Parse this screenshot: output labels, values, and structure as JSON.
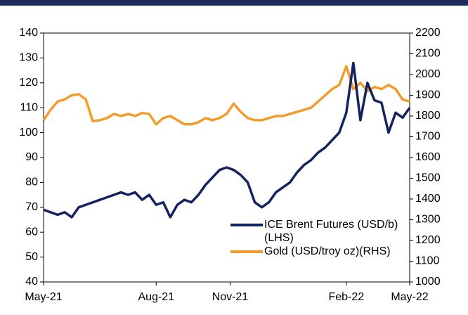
{
  "chart_data": {
    "type": "line",
    "xlim": [
      0,
      52
    ],
    "xticks": [
      {
        "value": 0,
        "label": "May-21"
      },
      {
        "value": 16,
        "label": "Aug-21"
      },
      {
        "value": 26.5,
        "label": "Nov-21"
      },
      {
        "value": 43,
        "label": "Feb-22"
      },
      {
        "value": 52,
        "label": "May-22"
      }
    ],
    "ylim": [
      40,
      140
    ],
    "yticks": [
      40,
      50,
      60,
      70,
      80,
      90,
      100,
      110,
      120,
      130,
      140
    ],
    "y2lim": [
      1000,
      2200
    ],
    "y2ticks": [
      1000,
      1100,
      1200,
      1300,
      1400,
      1500,
      1600,
      1700,
      1800,
      1900,
      2000,
      2100,
      2200
    ],
    "legend": "lower right",
    "series": [
      {
        "name": "ICE Brent Futures (USD/b)(LHS)",
        "color": "#13235f",
        "axis": "y",
        "values": [
          69,
          68,
          67,
          68,
          66,
          70,
          71,
          72,
          73,
          74,
          75,
          76,
          75,
          76,
          73,
          75,
          71,
          72,
          66,
          71,
          73,
          72,
          75,
          79,
          82,
          85,
          86,
          85,
          83,
          80,
          72,
          70,
          72,
          76,
          78,
          80,
          84,
          87,
          89,
          92,
          94,
          97,
          100,
          108,
          128,
          105,
          120,
          113,
          112,
          100,
          108,
          106,
          110
        ]
      },
      {
        "name": "Gold (USD/troy oz)(RHS)",
        "color": "#f39c2c",
        "axis": "y2",
        "values": [
          1780,
          1830,
          1870,
          1880,
          1900,
          1905,
          1880,
          1775,
          1780,
          1790,
          1810,
          1800,
          1810,
          1800,
          1815,
          1810,
          1760,
          1790,
          1800,
          1780,
          1760,
          1760,
          1770,
          1790,
          1780,
          1790,
          1810,
          1860,
          1820,
          1790,
          1780,
          1780,
          1790,
          1800,
          1800,
          1810,
          1820,
          1830,
          1840,
          1870,
          1900,
          1930,
          1950,
          2040,
          1930,
          1960,
          1920,
          1940,
          1930,
          1950,
          1930,
          1880,
          1870
        ]
      }
    ]
  }
}
